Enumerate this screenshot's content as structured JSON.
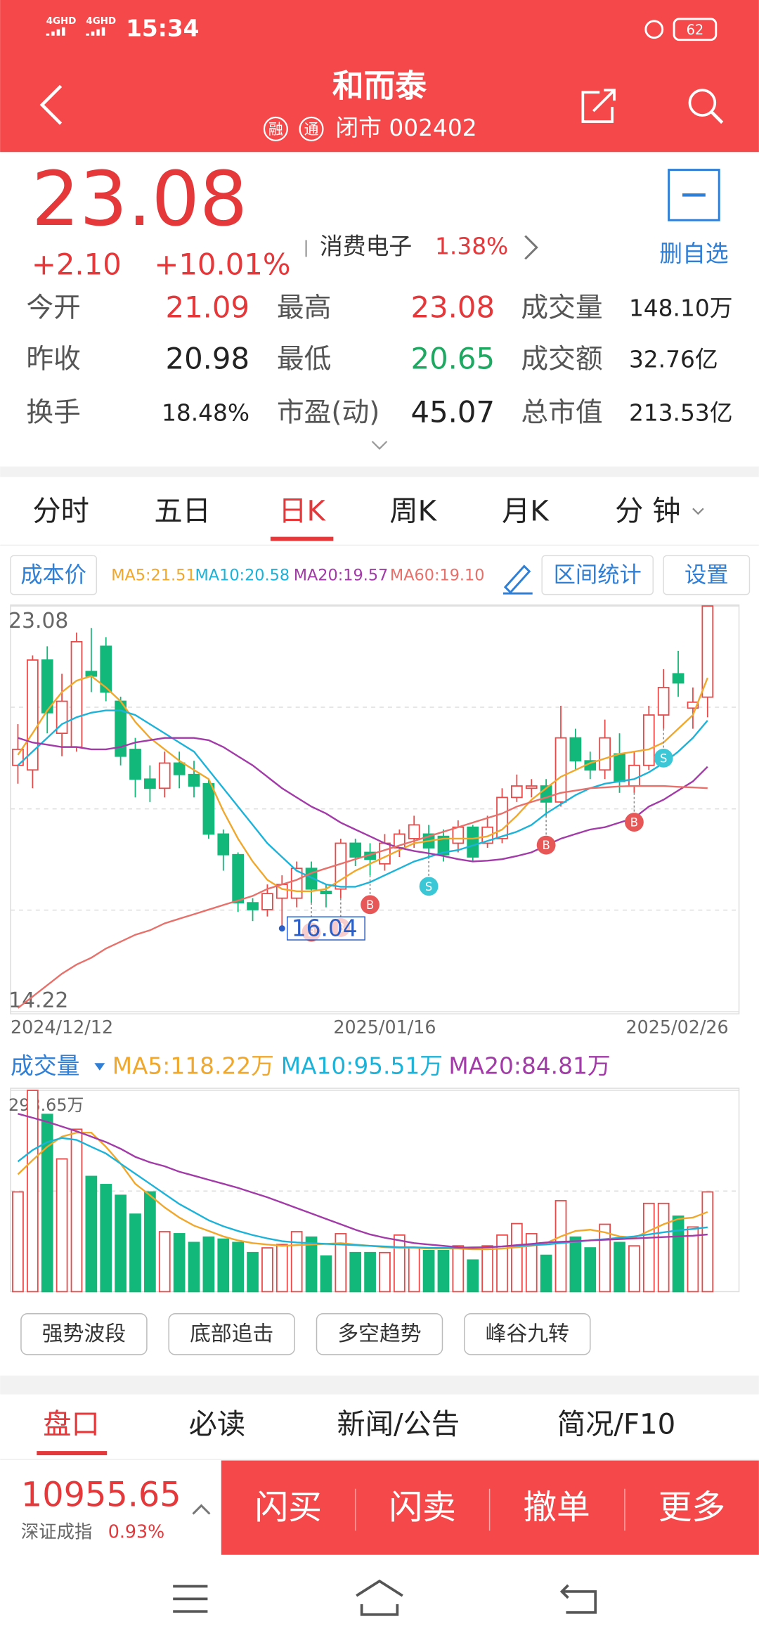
{
  "status_bar": {
    "network_1": "4GHD",
    "network_2": "4GHD",
    "time": "15:34",
    "battery": "62"
  },
  "header": {
    "title": "和而泰",
    "badge_1": "融",
    "badge_2": "通",
    "status": "闭市 002402"
  },
  "quote": {
    "price": "23.08",
    "change": "+2.10",
    "change_pct": "+10.01%",
    "sector": "消费电子",
    "sector_pct": "1.38%",
    "watch_button": "删自选"
  },
  "stats": [
    {
      "label": "今开",
      "value": "21.09",
      "color": "#e5383b"
    },
    {
      "label": "昨收",
      "value": "20.98",
      "color": "#222222"
    },
    {
      "label": "换手",
      "value": "18.48%",
      "color": "#222222"
    },
    {
      "label": "最高",
      "value": "23.08",
      "color": "#e5383b"
    },
    {
      "label": "最低",
      "value": "20.65",
      "color": "#1fa862"
    },
    {
      "label": "市盈(动)",
      "value": "45.07",
      "color": "#222222"
    },
    {
      "label": "成交量",
      "value": "148.10万",
      "color": "#222222"
    },
    {
      "label": "成交额",
      "value": "32.76亿",
      "color": "#222222"
    },
    {
      "label": "总市值",
      "value": "213.53亿",
      "color": "#222222"
    }
  ],
  "period_tabs": [
    "分时",
    "五日",
    "日K",
    "周K",
    "月K",
    "分 钟"
  ],
  "active_period": 2,
  "indicator_bar": {
    "cost_button": "成本价",
    "ma_labels": [
      "MA5:21.51",
      "MA10:20.58",
      "MA20:19.57",
      "MA60:19.10"
    ],
    "range_button": "区间统计",
    "settings_button": "设置"
  },
  "chart_data": [
    {
      "type": "candlestick",
      "categories": [
        "2024/12/12",
        null,
        null,
        null,
        null,
        null,
        null,
        null,
        null,
        null,
        null,
        null,
        null,
        null,
        null,
        null,
        null,
        null,
        null,
        null,
        null,
        null,
        null,
        null,
        null,
        "2025/01/16",
        null,
        null,
        null,
        null,
        null,
        null,
        null,
        null,
        null,
        null,
        null,
        null,
        null,
        null,
        null,
        null,
        null,
        null,
        null,
        null,
        null,
        "2025/02/26"
      ],
      "open": [
        19.6,
        19.5,
        21.9,
        20.3,
        20.0,
        21.65,
        22.2,
        21.0,
        19.95,
        19.3,
        19.1,
        19.65,
        19.4,
        19.2,
        18.1,
        17.65,
        16.6,
        16.45,
        16.7,
        16.7,
        17.35,
        16.85,
        16.9,
        17.9,
        17.7,
        17.45,
        17.8,
        18.0,
        18.1,
        18.05,
        17.9,
        18.25,
        17.9,
        18.0,
        18.9,
        19.1,
        19.15,
        18.8,
        20.2,
        19.7,
        19.5,
        19.85,
        19.15,
        19.6,
        20.7,
        21.6,
        20.85,
        21.09
      ],
      "high": [
        20.5,
        22.0,
        22.2,
        21.6,
        22.5,
        22.6,
        22.4,
        21.1,
        20.2,
        19.6,
        19.9,
        19.9,
        19.7,
        19.3,
        18.2,
        17.7,
        16.7,
        17.0,
        17.2,
        17.5,
        17.5,
        17.0,
        18.0,
        18.0,
        17.9,
        18.1,
        18.2,
        18.5,
        18.3,
        18.2,
        18.4,
        18.3,
        18.5,
        19.1,
        19.4,
        19.3,
        19.3,
        20.9,
        20.4,
        19.9,
        20.6,
        20.3,
        19.9,
        20.9,
        21.7,
        22.1,
        21.3,
        23.08
      ],
      "low": [
        19.2,
        19.1,
        20.3,
        19.8,
        19.9,
        21.2,
        21.0,
        19.6,
        18.9,
        18.8,
        18.9,
        19.1,
        18.9,
        18.0,
        17.3,
        16.4,
        16.2,
        16.3,
        16.04,
        16.5,
        16.6,
        16.5,
        16.7,
        17.4,
        17.2,
        17.3,
        17.6,
        17.8,
        17.6,
        17.5,
        17.7,
        17.5,
        17.8,
        17.9,
        18.8,
        18.9,
        18.5,
        18.7,
        19.5,
        19.3,
        19.3,
        19.0,
        19.0,
        19.5,
        20.4,
        21.1,
        20.4,
        20.65
      ],
      "close": [
        19.95,
        21.9,
        20.75,
        21.0,
        22.3,
        21.55,
        21.2,
        19.8,
        19.3,
        19.1,
        19.65,
        19.4,
        19.15,
        18.1,
        17.65,
        16.6,
        16.45,
        16.8,
        17.0,
        17.35,
        16.9,
        16.8,
        17.9,
        17.6,
        17.55,
        17.9,
        18.1,
        18.3,
        17.8,
        17.65,
        18.25,
        17.6,
        18.25,
        18.9,
        19.15,
        19.15,
        18.8,
        20.2,
        19.7,
        19.5,
        20.2,
        19.25,
        19.6,
        20.7,
        21.3,
        21.4,
        20.98,
        23.08
      ],
      "series": [
        {
          "name": "MA5",
          "color": "#f0a82c",
          "values": [
            19.83,
            20.3,
            20.8,
            21.2,
            21.45,
            21.55,
            21.3,
            21.0,
            20.55,
            20.2,
            19.95,
            19.7,
            19.5,
            19.3,
            18.6,
            18.0,
            17.5,
            17.1,
            16.9,
            16.85,
            16.85,
            16.9,
            17.1,
            17.3,
            17.45,
            17.6,
            17.75,
            17.9,
            17.95,
            18.0,
            18.0,
            18.0,
            18.05,
            18.2,
            18.5,
            18.85,
            19.1,
            19.35,
            19.5,
            19.65,
            19.75,
            19.85,
            19.9,
            19.95,
            20.1,
            20.4,
            20.7,
            21.51
          ]
        },
        {
          "name": "MA10",
          "color": "#1db3d9",
          "values": [
            19.6,
            19.9,
            20.2,
            20.5,
            20.65,
            20.75,
            20.8,
            20.8,
            20.7,
            20.5,
            20.3,
            20.1,
            19.9,
            19.5,
            19.1,
            18.7,
            18.3,
            17.9,
            17.6,
            17.3,
            17.15,
            17.0,
            16.95,
            16.95,
            17.05,
            17.2,
            17.35,
            17.5,
            17.6,
            17.7,
            17.75,
            17.85,
            17.95,
            18.05,
            18.15,
            18.3,
            18.55,
            18.75,
            18.95,
            19.1,
            19.2,
            19.25,
            19.3,
            19.45,
            19.65,
            19.9,
            20.2,
            20.58
          ]
        },
        {
          "name": "MA20",
          "color": "#a23aa8",
          "values": [
            20.2,
            20.1,
            20.05,
            20.0,
            20.0,
            19.95,
            19.95,
            20.0,
            20.1,
            20.15,
            20.2,
            20.2,
            20.2,
            20.15,
            20.0,
            19.8,
            19.6,
            19.35,
            19.1,
            18.9,
            18.7,
            18.55,
            18.35,
            18.2,
            18.05,
            17.9,
            17.8,
            17.73,
            17.68,
            17.62,
            17.55,
            17.5,
            17.52,
            17.55,
            17.62,
            17.7,
            17.85,
            18.0,
            18.1,
            18.2,
            18.25,
            18.35,
            18.45,
            18.7,
            18.85,
            19.05,
            19.25,
            19.57
          ]
        },
        {
          "name": "MA60",
          "color": "#e8706a",
          "values": [
            14.3,
            14.55,
            14.8,
            15.05,
            15.25,
            15.4,
            15.6,
            15.75,
            15.9,
            16.0,
            16.15,
            16.25,
            16.35,
            16.45,
            16.55,
            16.65,
            16.75,
            16.9,
            17.0,
            17.1,
            17.25,
            17.35,
            17.45,
            17.55,
            17.65,
            17.75,
            17.85,
            17.95,
            18.05,
            18.15,
            18.25,
            18.35,
            18.45,
            18.55,
            18.7,
            18.8,
            18.9,
            19.0,
            19.05,
            19.1,
            19.12,
            19.14,
            19.15,
            19.15,
            19.15,
            19.13,
            19.12,
            19.1
          ]
        }
      ],
      "ylim": [
        14.22,
        23.08
      ],
      "yticks": [
        14.22,
        23.08
      ],
      "grid_values": [
        16.44,
        18.65,
        20.87
      ],
      "up_color": "#e84a4a",
      "down_color": "#12b879",
      "low_annotation_index": 18,
      "signals": [
        {
          "index": 20,
          "label": "B"
        },
        {
          "index": 22,
          "label": "B"
        },
        {
          "index": 24,
          "label": "B"
        },
        {
          "index": 28,
          "label": "S"
        },
        {
          "index": 36,
          "label": "B"
        },
        {
          "index": 42,
          "label": "B"
        },
        {
          "index": 44,
          "label": "S"
        }
      ]
    },
    {
      "type": "bar",
      "values": [
        148,
        298.65,
        263,
        197,
        241,
        171,
        159,
        143,
        115,
        148,
        89,
        86,
        73,
        81,
        78,
        73,
        58,
        65,
        70,
        89,
        81,
        53,
        86,
        58,
        58,
        58,
        84,
        65,
        61,
        61,
        68,
        47,
        68,
        84,
        101,
        86,
        54,
        135,
        81,
        65,
        100,
        73,
        68,
        131,
        131,
        112,
        96,
        148
      ],
      "series": [
        {
          "name": "MA5",
          "color": "#f0a82c",
          "values": [
            174,
            195,
            215,
            230,
            236,
            236,
            215,
            190,
            160,
            143,
            125,
            110,
            98,
            90,
            82,
            76,
            72,
            70,
            68,
            69,
            70,
            71,
            72,
            70,
            68,
            66,
            65,
            65,
            64,
            64,
            64,
            63,
            63,
            64,
            66,
            68,
            72,
            82,
            90,
            92,
            88,
            82,
            80,
            90,
            100,
            108,
            110,
            118.22
          ]
        },
        {
          "name": "MA10",
          "color": "#1db3d9",
          "values": [
            193,
            210,
            222,
            228,
            225,
            215,
            205,
            190,
            175,
            160,
            145,
            130,
            118,
            106,
            97,
            90,
            84,
            79,
            75,
            73,
            72,
            71,
            70,
            69,
            68,
            67,
            66,
            66,
            65,
            65,
            65,
            66,
            66,
            67,
            68,
            69,
            70,
            72,
            74,
            76,
            78,
            80,
            82,
            85,
            88,
            91,
            93,
            95.51
          ]
        },
        {
          "name": "MA20",
          "color": "#a23aa8",
          "values": [
            264,
            258,
            252,
            245,
            238,
            230,
            222,
            212,
            200,
            192,
            186,
            178,
            172,
            166,
            160,
            154,
            147,
            140,
            132,
            124,
            116,
            108,
            100,
            92,
            85,
            80,
            76,
            72,
            70,
            68,
            66,
            65,
            66,
            67,
            69,
            71,
            73,
            74,
            75,
            76,
            77,
            78,
            79,
            80,
            81,
            82,
            83,
            84.81
          ]
        }
      ],
      "ylim": [
        0,
        298.65
      ],
      "yticks": [
        {
          "value": 298.65,
          "label": "298.65万"
        }
      ],
      "grid_values": [
        149.3
      ]
    }
  ],
  "volume_bar": {
    "label": "成交量",
    "ma_labels": [
      "MA5:118.22万",
      "MA10:95.51万",
      "MA20:84.81万"
    ]
  },
  "tools": [
    "强势波段",
    "底部追击",
    "多空趋势",
    "峰谷九转"
  ],
  "detail_tabs": [
    "盘口",
    "必读",
    "新闻/公告",
    "简况/F10"
  ],
  "active_detail": 0,
  "index_quote": {
    "value": "10955.65",
    "name": "深证成指",
    "change_pct": "0.93%"
  },
  "trade_buttons": [
    "闪买",
    "闪卖",
    "撤单",
    "更多"
  ]
}
